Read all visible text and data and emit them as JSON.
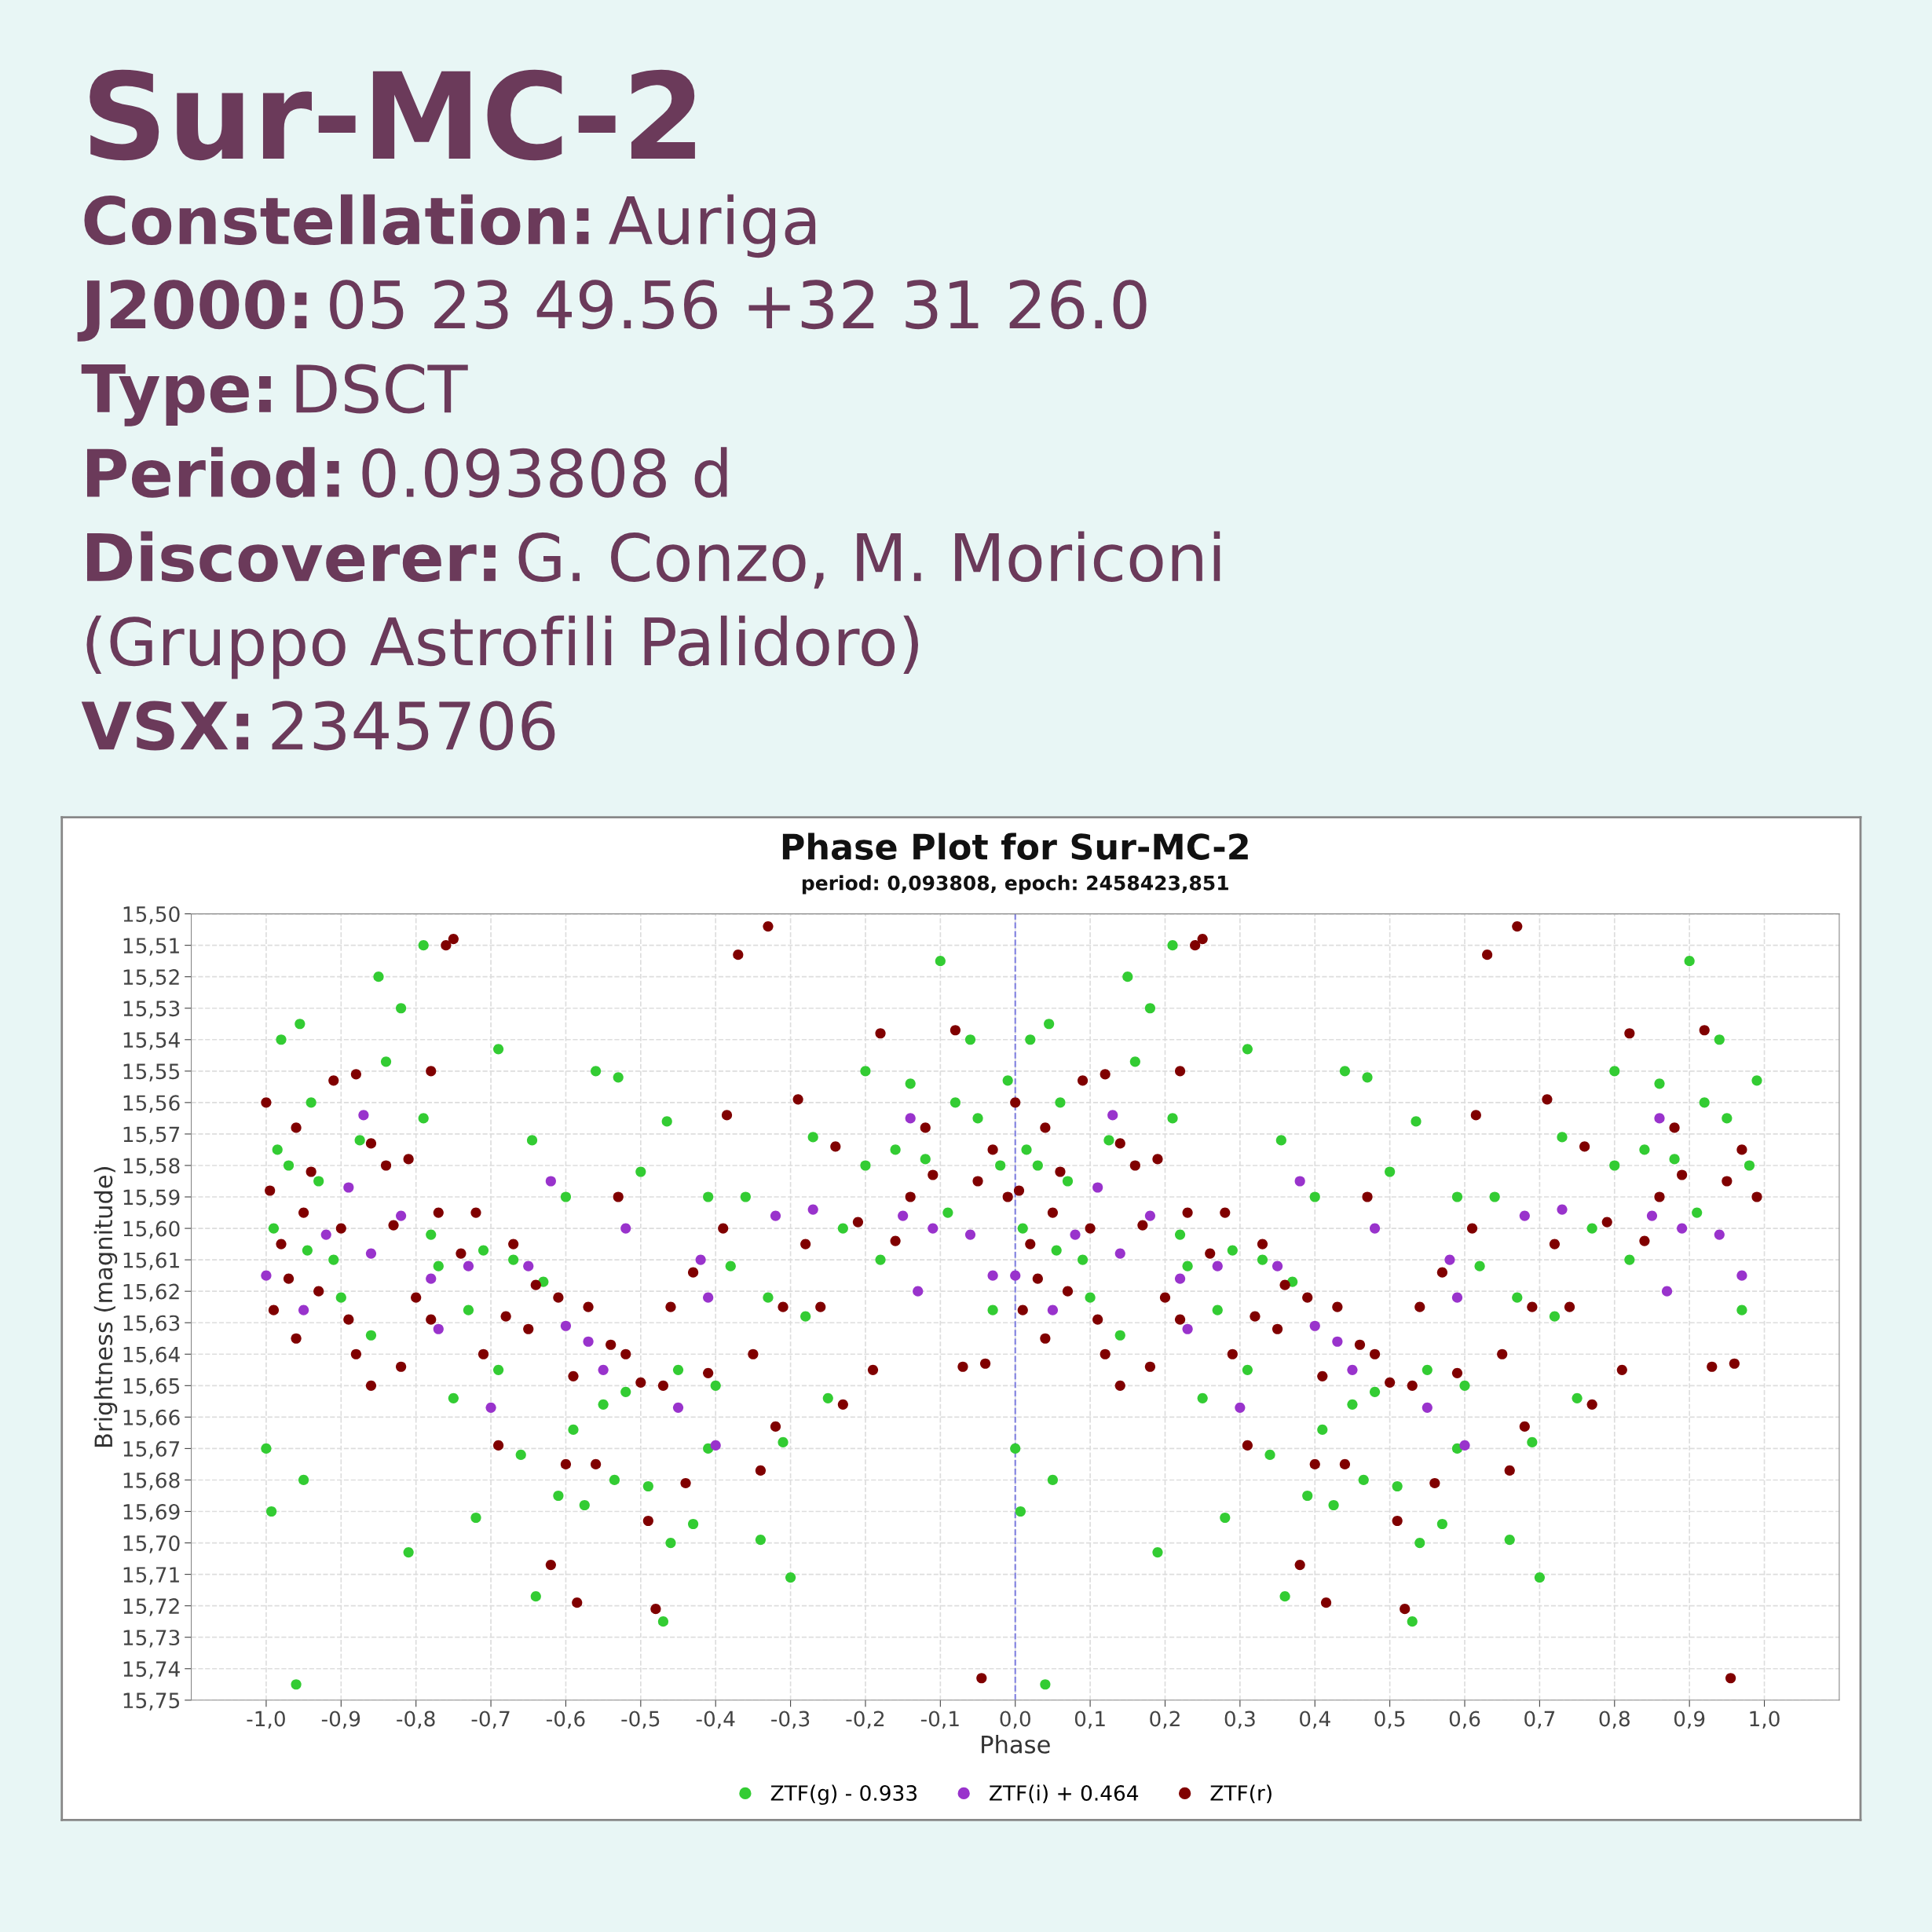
{
  "chart_data": {
    "type": "scatter",
    "title": "Phase Plot for Sur-MC-2",
    "subtitle": "period: 0,093808, epoch: 2458423,851",
    "xlabel": "Phase",
    "ylabel": "Brightness (magnitude)",
    "annotations": [
      "Sur-MC-2",
      "Constellation: Auriga",
      "J2000: 05 23 49.56 +32 31 26.0",
      "Type: DSCT",
      "Period: 0.093808 d",
      "Discoverer: G. Conzo, M. Moriconi",
      "(Gruppo Astrofili Palidoro)",
      "VSX: 2345706"
    ],
    "xlim": [
      -1.1,
      1.1
    ],
    "ylim": [
      15.75,
      15.5
    ],
    "xticks": [
      {
        "value": -1.0,
        "label": "-1,0"
      },
      {
        "value": -0.9,
        "label": "-0,9"
      },
      {
        "value": -0.8,
        "label": "-0,8"
      },
      {
        "value": -0.7,
        "label": "-0,7"
      },
      {
        "value": -0.6,
        "label": "-0,6"
      },
      {
        "value": -0.5,
        "label": "-0,5"
      },
      {
        "value": -0.4,
        "label": "-0,4"
      },
      {
        "value": -0.3,
        "label": "-0,3"
      },
      {
        "value": -0.2,
        "label": "-0,2"
      },
      {
        "value": -0.1,
        "label": "-0,1"
      },
      {
        "value": 0.0,
        "label": "0,0"
      },
      {
        "value": 0.1,
        "label": "0,1"
      },
      {
        "value": 0.2,
        "label": "0,2"
      },
      {
        "value": 0.3,
        "label": "0,3"
      },
      {
        "value": 0.4,
        "label": "0,4"
      },
      {
        "value": 0.5,
        "label": "0,5"
      },
      {
        "value": 0.6,
        "label": "0,6"
      },
      {
        "value": 0.7,
        "label": "0,7"
      },
      {
        "value": 0.8,
        "label": "0,8"
      },
      {
        "value": 0.9,
        "label": "0,9"
      },
      {
        "value": 1.0,
        "label": "1,0"
      }
    ],
    "yticks": [
      {
        "value": 15.5,
        "label": "15,50"
      },
      {
        "value": 15.51,
        "label": "15,51"
      },
      {
        "value": 15.52,
        "label": "15,52"
      },
      {
        "value": 15.53,
        "label": "15,53"
      },
      {
        "value": 15.54,
        "label": "15,54"
      },
      {
        "value": 15.55,
        "label": "15,55"
      },
      {
        "value": 15.56,
        "label": "15,56"
      },
      {
        "value": 15.57,
        "label": "15,57"
      },
      {
        "value": 15.58,
        "label": "15,58"
      },
      {
        "value": 15.59,
        "label": "15,59"
      },
      {
        "value": 15.6,
        "label": "15,60"
      },
      {
        "value": 15.61,
        "label": "15,61"
      },
      {
        "value": 15.62,
        "label": "15,62"
      },
      {
        "value": 15.63,
        "label": "15,63"
      },
      {
        "value": 15.64,
        "label": "15,64"
      },
      {
        "value": 15.65,
        "label": "15,65"
      },
      {
        "value": 15.66,
        "label": "15,66"
      },
      {
        "value": 15.67,
        "label": "15,67"
      },
      {
        "value": 15.68,
        "label": "15,68"
      },
      {
        "value": 15.69,
        "label": "15,69"
      },
      {
        "value": 15.7,
        "label": "15,70"
      },
      {
        "value": 15.71,
        "label": "15,71"
      },
      {
        "value": 15.72,
        "label": "15,72"
      },
      {
        "value": 15.73,
        "label": "15,73"
      },
      {
        "value": 15.74,
        "label": "15,74"
      },
      {
        "value": 15.75,
        "label": "15,75"
      }
    ],
    "grid": true,
    "legend": "bottom",
    "marker": "circle",
    "ref_lines": [
      {
        "axis": "x",
        "value": 0,
        "label": null,
        "color": "#8080e0",
        "line_style": "dashed"
      }
    ],
    "series": [
      {
        "name": "ZTF(g) - 0.933",
        "color": "#33cc33",
        "x": [
          -1.0,
          -0.993,
          -0.985,
          -0.99,
          -0.98,
          -0.97,
          -0.96,
          -0.955,
          -0.95,
          -0.945,
          -0.94,
          -0.93,
          -0.91,
          -0.9,
          -0.875,
          -0.86,
          -0.85,
          -0.84,
          -0.82,
          -0.81,
          -0.79,
          -0.79,
          -0.78,
          -0.77,
          -0.75,
          -0.73,
          -0.72,
          -0.71,
          -0.69,
          -0.69,
          -0.67,
          -0.66,
          -0.645,
          -0.64,
          -0.63,
          -0.61,
          -0.6,
          -0.59,
          -0.575,
          -0.56,
          -0.55,
          -0.535,
          -0.53,
          -0.52,
          -0.5,
          -0.49,
          -0.47,
          -0.465,
          -0.46,
          -0.45,
          -0.43,
          -0.41,
          -0.41,
          -0.4,
          -0.38,
          -0.36,
          -0.34,
          -0.33,
          -0.31,
          -0.3,
          -0.28,
          -0.27,
          -0.25,
          -0.23,
          -0.2,
          -0.2,
          -0.18,
          -0.16,
          -0.14,
          -0.12,
          -0.1,
          -0.09,
          -0.08,
          -0.06,
          -0.05,
          -0.03,
          -0.02,
          -0.01,
          0.0,
          0.007,
          0.015,
          0.01,
          0.02,
          0.03,
          0.04,
          0.045,
          0.05,
          0.055,
          0.06,
          0.07,
          0.09,
          0.1,
          0.125,
          0.14,
          0.15,
          0.16,
          0.18,
          0.19,
          0.21,
          0.21,
          0.22,
          0.23,
          0.25,
          0.27,
          0.28,
          0.29,
          0.31,
          0.31,
          0.33,
          0.34,
          0.355,
          0.36,
          0.37,
          0.39,
          0.4,
          0.41,
          0.425,
          0.44,
          0.45,
          0.465,
          0.47,
          0.48,
          0.5,
          0.51,
          0.53,
          0.535,
          0.54,
          0.55,
          0.57,
          0.59,
          0.59,
          0.6,
          0.62,
          0.64,
          0.66,
          0.67,
          0.69,
          0.7,
          0.72,
          0.73,
          0.75,
          0.77,
          0.8,
          0.8,
          0.82,
          0.84,
          0.86,
          0.88,
          0.9,
          0.91,
          0.92,
          0.94,
          0.95,
          0.97,
          0.98,
          0.99
        ],
        "values": [
          15.67,
          15.69,
          15.575,
          15.6,
          15.54,
          15.58,
          15.745,
          15.535,
          15.68,
          15.607,
          15.56,
          15.585,
          15.61,
          15.622,
          15.572,
          15.634,
          15.52,
          15.547,
          15.53,
          15.703,
          15.51,
          15.565,
          15.602,
          15.612,
          15.654,
          15.626,
          15.692,
          15.607,
          15.543,
          15.645,
          15.61,
          15.672,
          15.572,
          15.717,
          15.617,
          15.685,
          15.59,
          15.664,
          15.688,
          15.55,
          15.656,
          15.68,
          15.552,
          15.652,
          15.582,
          15.682,
          15.725,
          15.566,
          15.7,
          15.645,
          15.694,
          15.59,
          15.67,
          15.65,
          15.612,
          15.59,
          15.699,
          15.622,
          15.668,
          15.711,
          15.628,
          15.571,
          15.654,
          15.6,
          15.58,
          15.55,
          15.61,
          15.575,
          15.554,
          15.578,
          15.515,
          15.595,
          15.56,
          15.54,
          15.565,
          15.626,
          15.58,
          15.553,
          15.67,
          15.69,
          15.575,
          15.6,
          15.54,
          15.58,
          15.745,
          15.535,
          15.68,
          15.607,
          15.56,
          15.585,
          15.61,
          15.622,
          15.572,
          15.634,
          15.52,
          15.547,
          15.53,
          15.703,
          15.51,
          15.565,
          15.602,
          15.612,
          15.654,
          15.626,
          15.692,
          15.607,
          15.543,
          15.645,
          15.61,
          15.672,
          15.572,
          15.717,
          15.617,
          15.685,
          15.59,
          15.664,
          15.688,
          15.55,
          15.656,
          15.68,
          15.552,
          15.652,
          15.582,
          15.682,
          15.725,
          15.566,
          15.7,
          15.645,
          15.694,
          15.59,
          15.67,
          15.65,
          15.612,
          15.59,
          15.699,
          15.622,
          15.668,
          15.711,
          15.628,
          15.571,
          15.654,
          15.6,
          15.58,
          15.55,
          15.61,
          15.575,
          15.554,
          15.578,
          15.515,
          15.595,
          15.56,
          15.54,
          15.565,
          15.626,
          15.58,
          15.553
        ]
      },
      {
        "name": "ZTF(i) + 0.464",
        "color": "#9933cc",
        "x": [
          -1.0,
          -0.95,
          -0.92,
          -0.89,
          -0.87,
          -0.86,
          -0.82,
          -0.78,
          -0.77,
          -0.73,
          -0.7,
          -0.65,
          -0.62,
          -0.6,
          -0.57,
          -0.55,
          -0.52,
          -0.45,
          -0.42,
          -0.41,
          -0.4,
          -0.32,
          -0.27,
          -0.15,
          -0.14,
          -0.13,
          -0.11,
          -0.06,
          -0.03,
          0.0,
          0.05,
          0.08,
          0.11,
          0.13,
          0.14,
          0.18,
          0.22,
          0.23,
          0.27,
          0.3,
          0.35,
          0.38,
          0.4,
          0.43,
          0.45,
          0.48,
          0.55,
          0.58,
          0.59,
          0.6,
          0.68,
          0.73,
          0.85,
          0.86,
          0.87,
          0.89,
          0.94,
          0.97
        ],
        "values": [
          15.615,
          15.626,
          15.602,
          15.587,
          15.564,
          15.608,
          15.596,
          15.616,
          15.632,
          15.612,
          15.657,
          15.612,
          15.585,
          15.631,
          15.636,
          15.645,
          15.6,
          15.657,
          15.61,
          15.622,
          15.669,
          15.596,
          15.594,
          15.596,
          15.565,
          15.62,
          15.6,
          15.602,
          15.615,
          15.615,
          15.626,
          15.602,
          15.587,
          15.564,
          15.608,
          15.596,
          15.616,
          15.632,
          15.612,
          15.657,
          15.612,
          15.585,
          15.631,
          15.636,
          15.645,
          15.6,
          15.657,
          15.61,
          15.622,
          15.669,
          15.596,
          15.594,
          15.596,
          15.565,
          15.62,
          15.6,
          15.602,
          15.615
        ]
      },
      {
        "name": "ZTF(r)",
        "color": "#800000",
        "x": [
          -1.0,
          -0.995,
          -0.99,
          -0.98,
          -0.97,
          -0.96,
          -0.96,
          -0.95,
          -0.94,
          -0.93,
          -0.91,
          -0.9,
          -0.89,
          -0.88,
          -0.88,
          -0.86,
          -0.86,
          -0.84,
          -0.83,
          -0.82,
          -0.81,
          -0.8,
          -0.78,
          -0.77,
          -0.76,
          -0.75,
          -0.78,
          -0.74,
          -0.72,
          -0.71,
          -0.69,
          -0.68,
          -0.67,
          -0.65,
          -0.64,
          -0.62,
          -0.61,
          -0.6,
          -0.59,
          -0.585,
          -0.57,
          -0.56,
          -0.54,
          -0.53,
          -0.52,
          -0.5,
          -0.49,
          -0.48,
          -0.47,
          -0.46,
          -0.44,
          -0.43,
          -0.41,
          -0.39,
          -0.385,
          -0.37,
          -0.35,
          -0.34,
          -0.33,
          -0.32,
          -0.31,
          -0.29,
          -0.28,
          -0.26,
          -0.24,
          -0.23,
          -0.21,
          -0.19,
          -0.18,
          -0.16,
          -0.14,
          -0.12,
          -0.11,
          -0.08,
          -0.07,
          -0.05,
          -0.045,
          -0.04,
          -0.03,
          -0.01,
          0.0,
          0.005,
          0.01,
          0.02,
          0.03,
          0.04,
          0.04,
          0.05,
          0.06,
          0.07,
          0.09,
          0.1,
          0.11,
          0.12,
          0.12,
          0.14,
          0.14,
          0.16,
          0.17,
          0.18,
          0.19,
          0.2,
          0.22,
          0.23,
          0.24,
          0.25,
          0.22,
          0.26,
          0.28,
          0.29,
          0.31,
          0.32,
          0.33,
          0.35,
          0.36,
          0.38,
          0.39,
          0.4,
          0.41,
          0.415,
          0.43,
          0.44,
          0.46,
          0.47,
          0.48,
          0.5,
          0.51,
          0.52,
          0.53,
          0.54,
          0.56,
          0.57,
          0.59,
          0.61,
          0.615,
          0.63,
          0.65,
          0.66,
          0.67,
          0.68,
          0.69,
          0.71,
          0.72,
          0.74,
          0.76,
          0.77,
          0.79,
          0.81,
          0.82,
          0.84,
          0.86,
          0.88,
          0.89,
          0.92,
          0.93,
          0.95,
          0.955,
          0.96,
          0.97,
          0.99
        ],
        "values": [
          15.56,
          15.588,
          15.626,
          15.605,
          15.616,
          15.568,
          15.635,
          15.595,
          15.582,
          15.62,
          15.553,
          15.6,
          15.629,
          15.551,
          15.64,
          15.65,
          15.573,
          15.58,
          15.599,
          15.644,
          15.578,
          15.622,
          15.629,
          15.595,
          15.51,
          15.508,
          15.55,
          15.608,
          15.595,
          15.64,
          15.669,
          15.628,
          15.605,
          15.632,
          15.618,
          15.707,
          15.622,
          15.675,
          15.647,
          15.719,
          15.625,
          15.675,
          15.637,
          15.59,
          15.64,
          15.649,
          15.693,
          15.721,
          15.65,
          15.625,
          15.681,
          15.614,
          15.646,
          15.6,
          15.564,
          15.513,
          15.64,
          15.677,
          15.504,
          15.663,
          15.625,
          15.559,
          15.605,
          15.625,
          15.574,
          15.656,
          15.598,
          15.645,
          15.538,
          15.604,
          15.59,
          15.568,
          15.583,
          15.537,
          15.644,
          15.585,
          15.743,
          15.643,
          15.575,
          15.59,
          15.56,
          15.588,
          15.626,
          15.605,
          15.616,
          15.568,
          15.635,
          15.595,
          15.582,
          15.62,
          15.553,
          15.6,
          15.629,
          15.551,
          15.64,
          15.65,
          15.573,
          15.58,
          15.599,
          15.644,
          15.578,
          15.622,
          15.629,
          15.595,
          15.51,
          15.508,
          15.55,
          15.608,
          15.595,
          15.64,
          15.669,
          15.628,
          15.605,
          15.632,
          15.618,
          15.707,
          15.622,
          15.675,
          15.647,
          15.719,
          15.625,
          15.675,
          15.637,
          15.59,
          15.64,
          15.649,
          15.693,
          15.721,
          15.65,
          15.625,
          15.681,
          15.614,
          15.646,
          15.6,
          15.564,
          15.513,
          15.64,
          15.677,
          15.504,
          15.663,
          15.625,
          15.559,
          15.605,
          15.625,
          15.574,
          15.656,
          15.598,
          15.645,
          15.538,
          15.604,
          15.59,
          15.568,
          15.583,
          15.537,
          15.644,
          15.585,
          15.743,
          15.643,
          15.575,
          15.59
        ]
      }
    ]
  }
}
